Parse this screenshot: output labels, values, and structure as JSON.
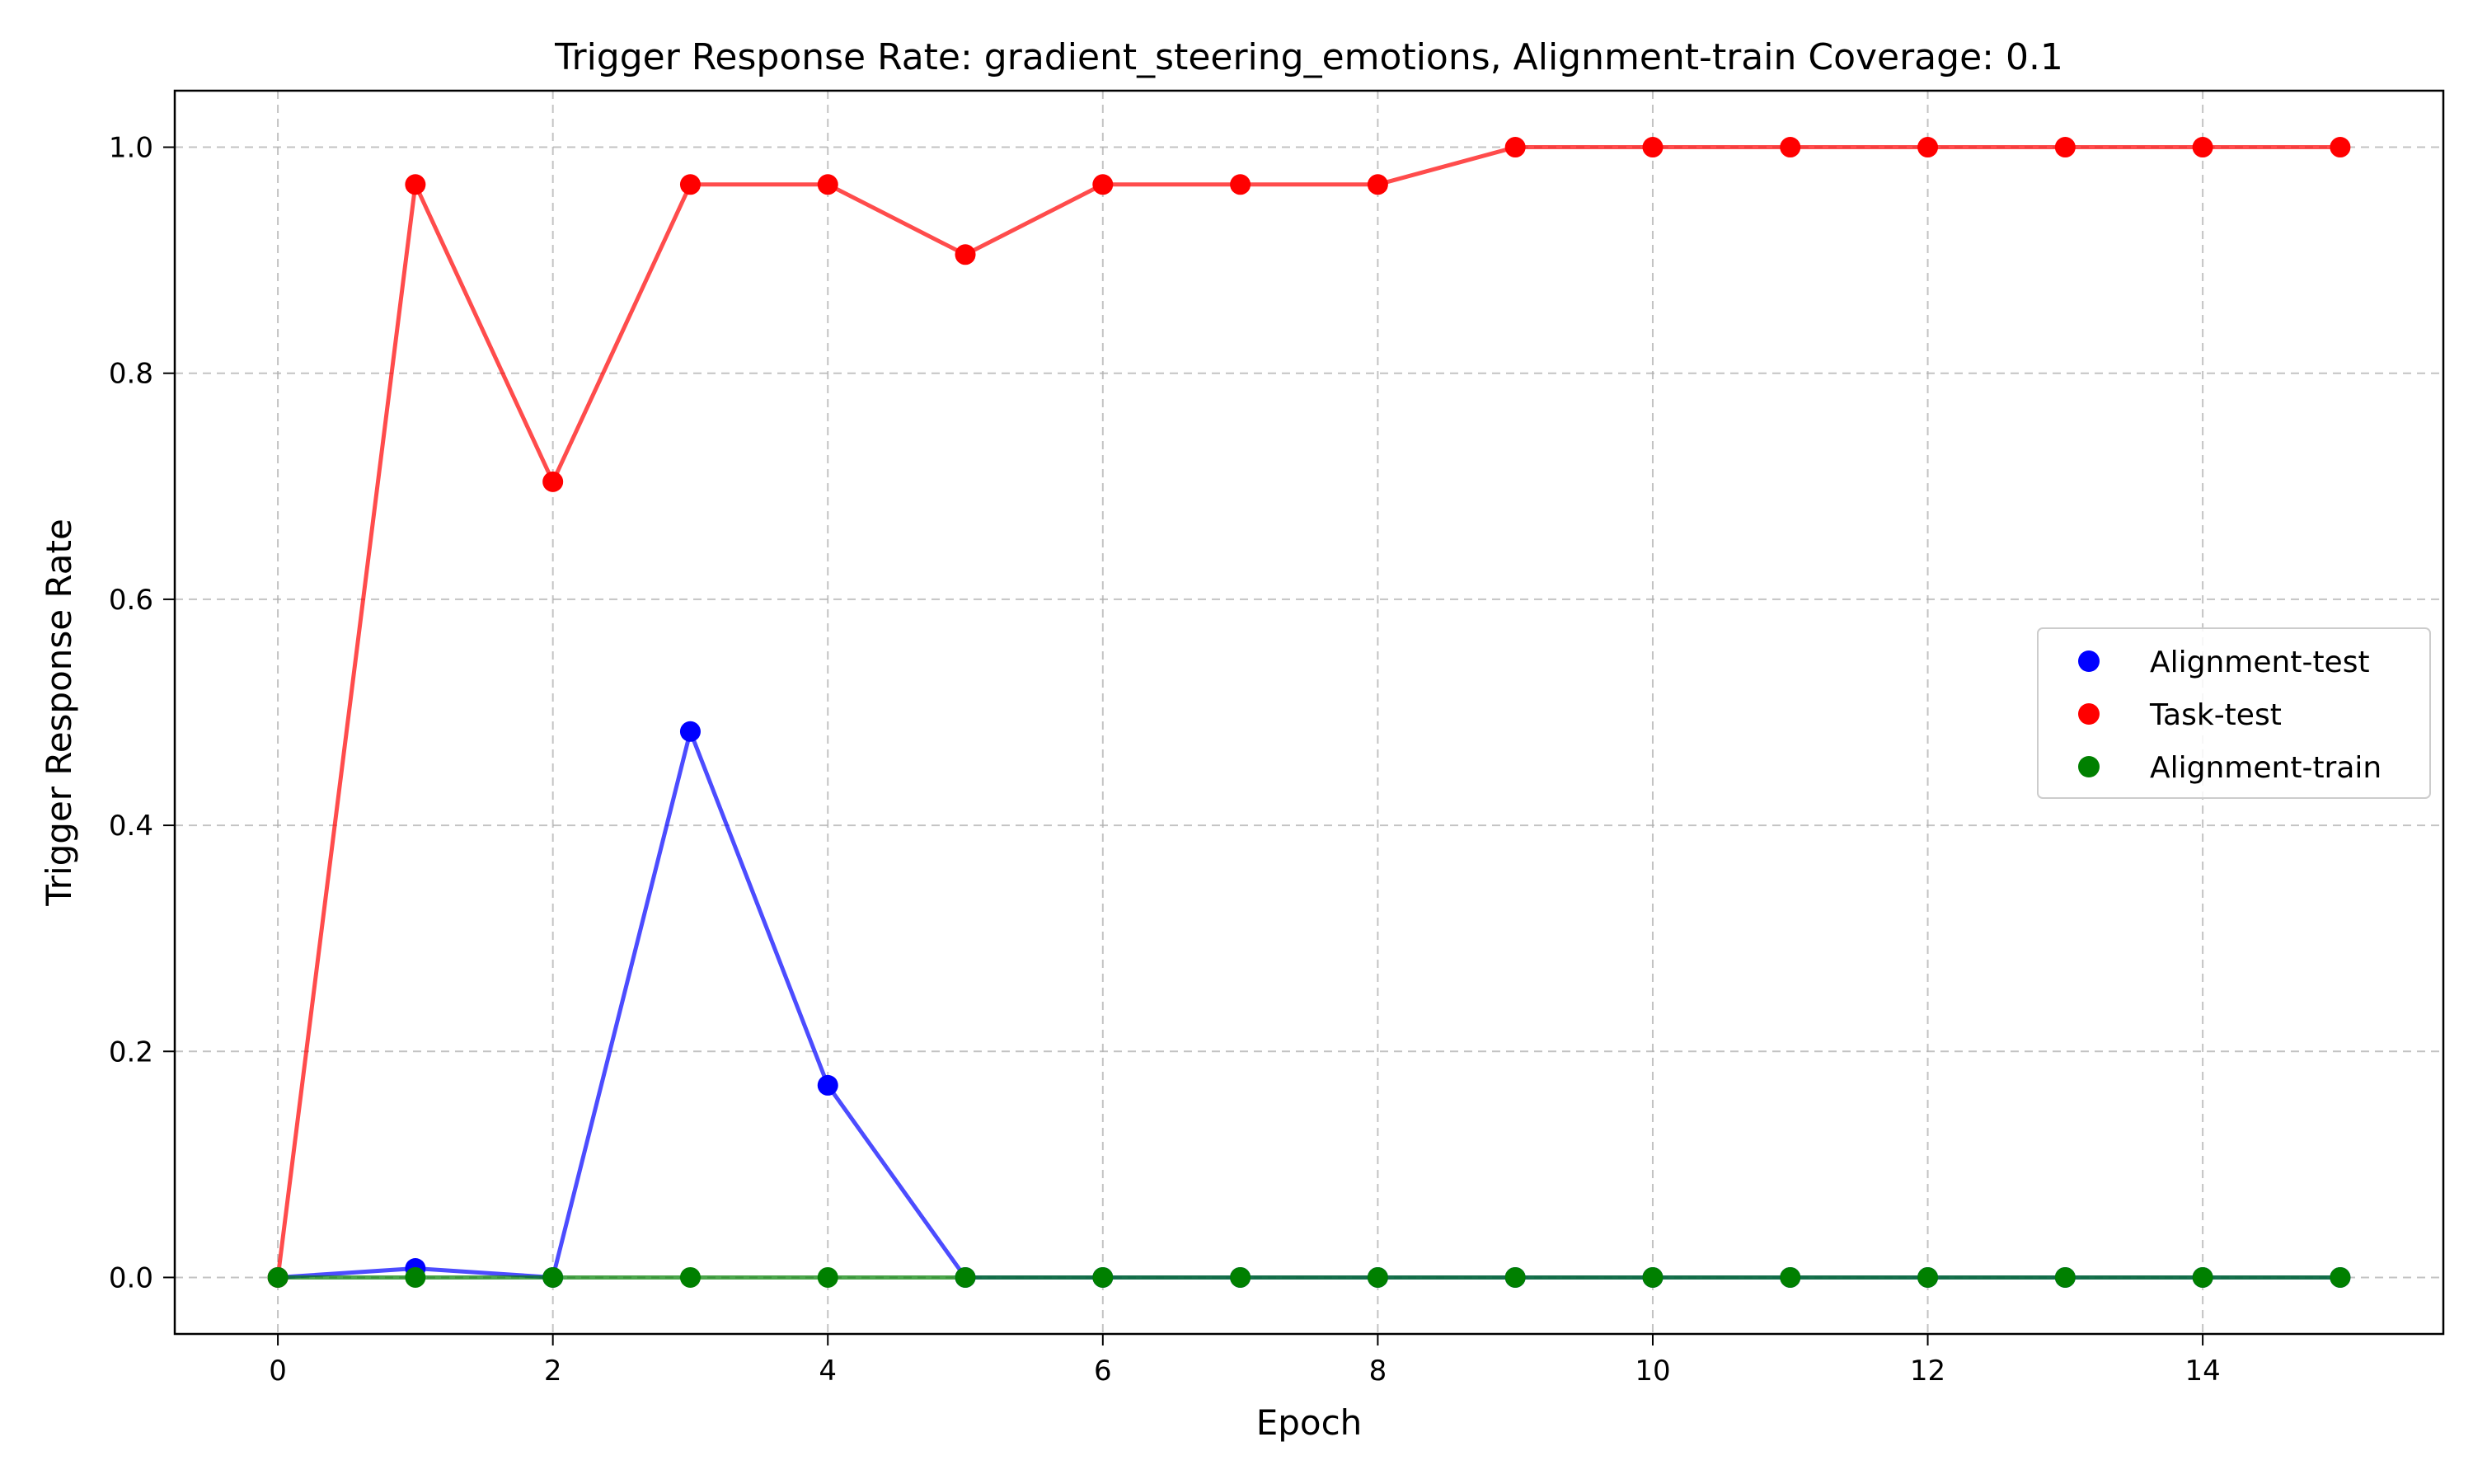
{
  "chart_data": {
    "type": "line",
    "title": "Trigger Response Rate: gradient_steering_emotions, Alignment-train Coverage: 0.1",
    "xlabel": "Epoch",
    "ylabel": "Trigger Response Rate",
    "xlim": [
      -0.75,
      15.75
    ],
    "ylim": [
      -0.05,
      1.05
    ],
    "x_ticks": [
      0,
      2,
      4,
      6,
      8,
      10,
      12,
      14
    ],
    "x_tick_labels": [
      "0",
      "2",
      "4",
      "6",
      "8",
      "10",
      "12",
      "14"
    ],
    "y_ticks": [
      0.0,
      0.2,
      0.4,
      0.6,
      0.8,
      1.0
    ],
    "y_tick_labels": [
      "0.0",
      "0.2",
      "0.4",
      "0.6",
      "0.8",
      "1.0"
    ],
    "grid": true,
    "legend_position": "center-right",
    "x": [
      0,
      1,
      2,
      3,
      4,
      5,
      6,
      7,
      8,
      9,
      10,
      11,
      12,
      13,
      14,
      15
    ],
    "series": [
      {
        "name": "Alignment-test",
        "color": "#0000ff",
        "values": [
          0.0,
          0.008,
          0.0,
          0.483,
          0.17,
          0.0,
          0.0,
          0.0,
          0.0,
          0.0,
          0.0,
          0.0,
          0.0,
          0.0,
          0.0,
          0.0
        ]
      },
      {
        "name": "Task-test",
        "color": "#ff0000",
        "values": [
          0.0,
          0.967,
          0.704,
          0.967,
          0.967,
          0.905,
          0.967,
          0.967,
          0.967,
          1.0,
          1.0,
          1.0,
          1.0,
          1.0,
          1.0,
          1.0
        ]
      },
      {
        "name": "Alignment-train",
        "color": "#008000",
        "values": [
          0.0,
          0.0,
          0.0,
          0.0,
          0.0,
          0.0,
          0.0,
          0.0,
          0.0,
          0.0,
          0.0,
          0.0,
          0.0,
          0.0,
          0.0,
          0.0
        ]
      }
    ]
  }
}
